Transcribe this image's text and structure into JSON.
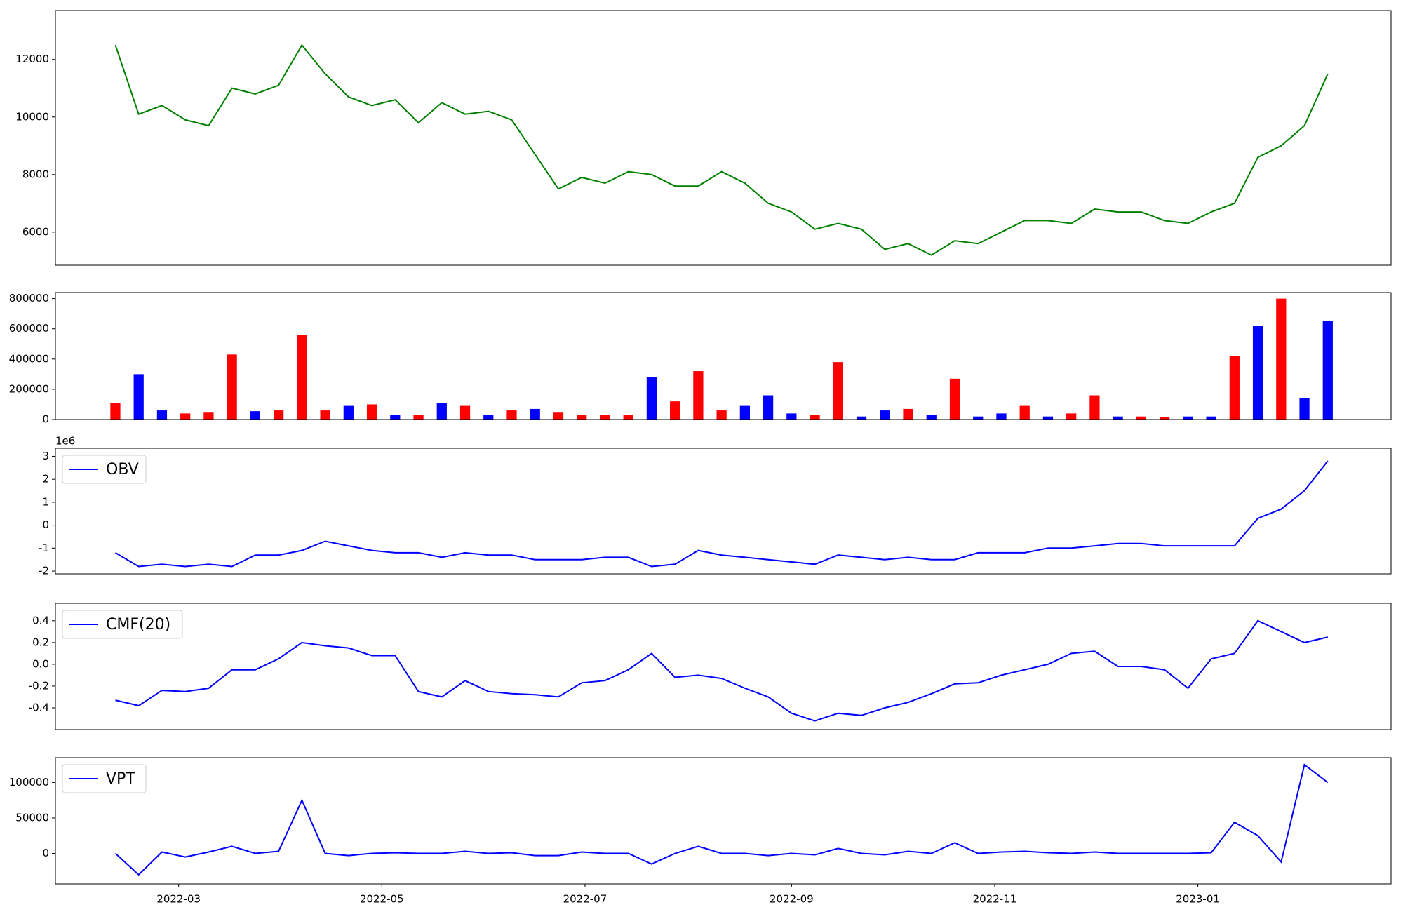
{
  "chart_data": [
    {
      "type": "line",
      "series": [
        {
          "color": "#008000",
          "values": [
            12500,
            10100,
            10400,
            9900,
            9700,
            11000,
            10800,
            11100,
            12500,
            11500,
            10700,
            10400,
            10600,
            9800,
            10500,
            10100,
            10200,
            9900,
            8700,
            7500,
            7900,
            7700,
            8100,
            8000,
            7600,
            7600,
            8100,
            7700,
            7000,
            6700,
            6100,
            6300,
            6100,
            5400,
            5600,
            5200,
            5700,
            5600,
            6000,
            6400,
            6400,
            6300,
            6800,
            6700,
            6700,
            6400,
            6300,
            6700,
            7000,
            8600,
            9000,
            9700,
            11500
          ]
        }
      ],
      "x": [
        40,
        47,
        54,
        61,
        68,
        75,
        82,
        89,
        96,
        103,
        110,
        117,
        124,
        131,
        138,
        145,
        152,
        159,
        166,
        173,
        180,
        187,
        194,
        201,
        208,
        215,
        222,
        229,
        236,
        243,
        250,
        257,
        264,
        271,
        278,
        285,
        292,
        299,
        306,
        313,
        320,
        327,
        334,
        341,
        348,
        355,
        362,
        369,
        376,
        383,
        390,
        397,
        404
      ],
      "xlim": [
        22,
        423
      ],
      "ylim": [
        4850,
        13700
      ],
      "yticks": [
        6000,
        8000,
        10000,
        12000
      ]
    },
    {
      "type": "bar",
      "values": [
        110000,
        300000,
        60000,
        40000,
        50000,
        430000,
        55000,
        60000,
        560000,
        60000,
        90000,
        100000,
        30000,
        30000,
        110000,
        90000,
        30000,
        60000,
        70000,
        50000,
        30000,
        30000,
        30000,
        280000,
        120000,
        320000,
        60000,
        90000,
        160000,
        40000,
        30000,
        380000,
        20000,
        60000,
        70000,
        30000,
        270000,
        20000,
        40000,
        90000,
        20000,
        40000,
        160000,
        20000,
        20000,
        15000,
        20000,
        20000,
        420000,
        620000,
        800000,
        140000,
        650000
      ],
      "colors": [
        "#ff0000",
        "#0000ff",
        "#0000ff",
        "#ff0000",
        "#ff0000",
        "#ff0000",
        "#0000ff",
        "#ff0000",
        "#ff0000",
        "#ff0000",
        "#0000ff",
        "#ff0000",
        "#0000ff",
        "#ff0000",
        "#0000ff",
        "#ff0000",
        "#0000ff",
        "#ff0000",
        "#0000ff",
        "#ff0000",
        "#ff0000",
        "#ff0000",
        "#ff0000",
        "#0000ff",
        "#ff0000",
        "#ff0000",
        "#ff0000",
        "#0000ff",
        "#0000ff",
        "#0000ff",
        "#ff0000",
        "#ff0000",
        "#0000ff",
        "#0000ff",
        "#ff0000",
        "#0000ff",
        "#ff0000",
        "#0000ff",
        "#0000ff",
        "#ff0000",
        "#0000ff",
        "#ff0000",
        "#ff0000",
        "#0000ff",
        "#ff0000",
        "#ff0000",
        "#0000ff",
        "#0000ff",
        "#ff0000",
        "#0000ff",
        "#ff0000",
        "#0000ff",
        "#0000ff"
      ],
      "x": [
        40,
        47,
        54,
        61,
        68,
        75,
        82,
        89,
        96,
        103,
        110,
        117,
        124,
        131,
        138,
        145,
        152,
        159,
        166,
        173,
        180,
        187,
        194,
        201,
        208,
        215,
        222,
        229,
        236,
        243,
        250,
        257,
        264,
        271,
        278,
        285,
        292,
        299,
        306,
        313,
        320,
        327,
        334,
        341,
        348,
        355,
        362,
        369,
        376,
        383,
        390,
        397,
        404
      ],
      "xlim": [
        22,
        423
      ],
      "ylim": [
        0,
        840000
      ],
      "yticks": [
        0,
        200000,
        400000,
        600000,
        800000
      ]
    },
    {
      "type": "line",
      "offset_label": "1e6",
      "legend": "upper left",
      "series": [
        {
          "name": "OBV",
          "color": "#0000ff",
          "values": [
            -1.2,
            -1.8,
            -1.7,
            -1.8,
            -1.7,
            -1.8,
            -1.3,
            -1.3,
            -1.1,
            -0.7,
            -0.9,
            -1.1,
            -1.2,
            -1.2,
            -1.4,
            -1.2,
            -1.3,
            -1.3,
            -1.5,
            -1.5,
            -1.5,
            -1.4,
            -1.4,
            -1.8,
            -1.7,
            -1.1,
            -1.3,
            -1.4,
            -1.5,
            -1.6,
            -1.7,
            -1.3,
            -1.4,
            -1.5,
            -1.4,
            -1.5,
            -1.5,
            -1.2,
            -1.2,
            -1.2,
            -1.0,
            -1.0,
            -0.9,
            -0.8,
            -0.8,
            -0.9,
            -0.9,
            -0.9,
            -0.9,
            0.3,
            0.7,
            1.5,
            2.8
          ]
        }
      ],
      "x": [
        40,
        47,
        54,
        61,
        68,
        75,
        82,
        89,
        96,
        103,
        110,
        117,
        124,
        131,
        138,
        145,
        152,
        159,
        166,
        173,
        180,
        187,
        194,
        201,
        208,
        215,
        222,
        229,
        236,
        243,
        250,
        257,
        264,
        271,
        278,
        285,
        292,
        299,
        306,
        313,
        320,
        327,
        334,
        341,
        348,
        355,
        362,
        369,
        376,
        383,
        390,
        397,
        404
      ],
      "xlim": [
        22,
        423
      ],
      "ylim": [
        -2.12,
        3.35
      ],
      "yticks": [
        -2,
        -1,
        0,
        1,
        2,
        3
      ]
    },
    {
      "type": "line",
      "legend": "upper left",
      "series": [
        {
          "name": "CMF(20)",
          "color": "#0000ff",
          "values": [
            -0.33,
            -0.38,
            -0.24,
            -0.25,
            -0.22,
            -0.05,
            -0.05,
            0.05,
            0.2,
            0.17,
            0.15,
            0.08,
            0.08,
            -0.25,
            -0.3,
            -0.15,
            -0.25,
            -0.27,
            -0.28,
            -0.3,
            -0.17,
            -0.15,
            -0.05,
            0.1,
            -0.12,
            -0.1,
            -0.13,
            -0.22,
            -0.3,
            -0.45,
            -0.52,
            -0.45,
            -0.47,
            -0.4,
            -0.35,
            -0.27,
            -0.18,
            -0.17,
            -0.1,
            -0.05,
            0.0,
            0.1,
            0.12,
            -0.02,
            -0.02,
            -0.05,
            -0.22,
            0.05,
            0.1,
            0.4,
            0.3,
            0.2,
            0.25
          ]
        }
      ],
      "x": [
        40,
        47,
        54,
        61,
        68,
        75,
        82,
        89,
        96,
        103,
        110,
        117,
        124,
        131,
        138,
        145,
        152,
        159,
        166,
        173,
        180,
        187,
        194,
        201,
        208,
        215,
        222,
        229,
        236,
        243,
        250,
        257,
        264,
        271,
        278,
        285,
        292,
        299,
        306,
        313,
        320,
        327,
        334,
        341,
        348,
        355,
        362,
        369,
        376,
        383,
        390,
        397,
        404
      ],
      "xlim": [
        22,
        423
      ],
      "ylim": [
        -0.6,
        0.56
      ],
      "yticks": [
        -0.4,
        -0.2,
        {
          "value": 0,
          "label": "0.0"
        },
        0.2,
        0.4
      ]
    },
    {
      "type": "line",
      "legend": "upper left",
      "series": [
        {
          "name": "VPT",
          "color": "#0000ff",
          "values": [
            0,
            -30000,
            2000,
            -5000,
            2000,
            10000,
            0,
            3000,
            75000,
            0,
            -3000,
            0,
            1000,
            0,
            0,
            3000,
            0,
            1000,
            -3000,
            -3000,
            2000,
            0,
            0,
            -15000,
            0,
            10000,
            0,
            0,
            -3000,
            0,
            -2000,
            7000,
            0,
            -2000,
            3000,
            0,
            15000,
            0,
            2000,
            3000,
            1000,
            0,
            2000,
            0,
            0,
            0,
            0,
            1000,
            44000,
            25000,
            -12000,
            125000,
            100000
          ]
        }
      ],
      "x": [
        40,
        47,
        54,
        61,
        68,
        75,
        82,
        89,
        96,
        103,
        110,
        117,
        124,
        131,
        138,
        145,
        152,
        159,
        166,
        173,
        180,
        187,
        194,
        201,
        208,
        215,
        222,
        229,
        236,
        243,
        250,
        257,
        264,
        271,
        278,
        285,
        292,
        299,
        306,
        313,
        320,
        327,
        334,
        341,
        348,
        355,
        362,
        369,
        376,
        383,
        390,
        397,
        404
      ],
      "xlim": [
        22,
        423
      ],
      "ylim": [
        -43000,
        135000
      ],
      "yticks": [
        0,
        50000,
        100000
      ],
      "xticks": [
        {
          "value": 59,
          "label": "2022-03"
        },
        {
          "value": 120,
          "label": "2022-05"
        },
        {
          "value": 181,
          "label": "2022-07"
        },
        {
          "value": 243,
          "label": "2022-09"
        },
        {
          "value": 304,
          "label": "2022-11"
        },
        {
          "value": 365,
          "label": "2023-01"
        }
      ]
    }
  ]
}
